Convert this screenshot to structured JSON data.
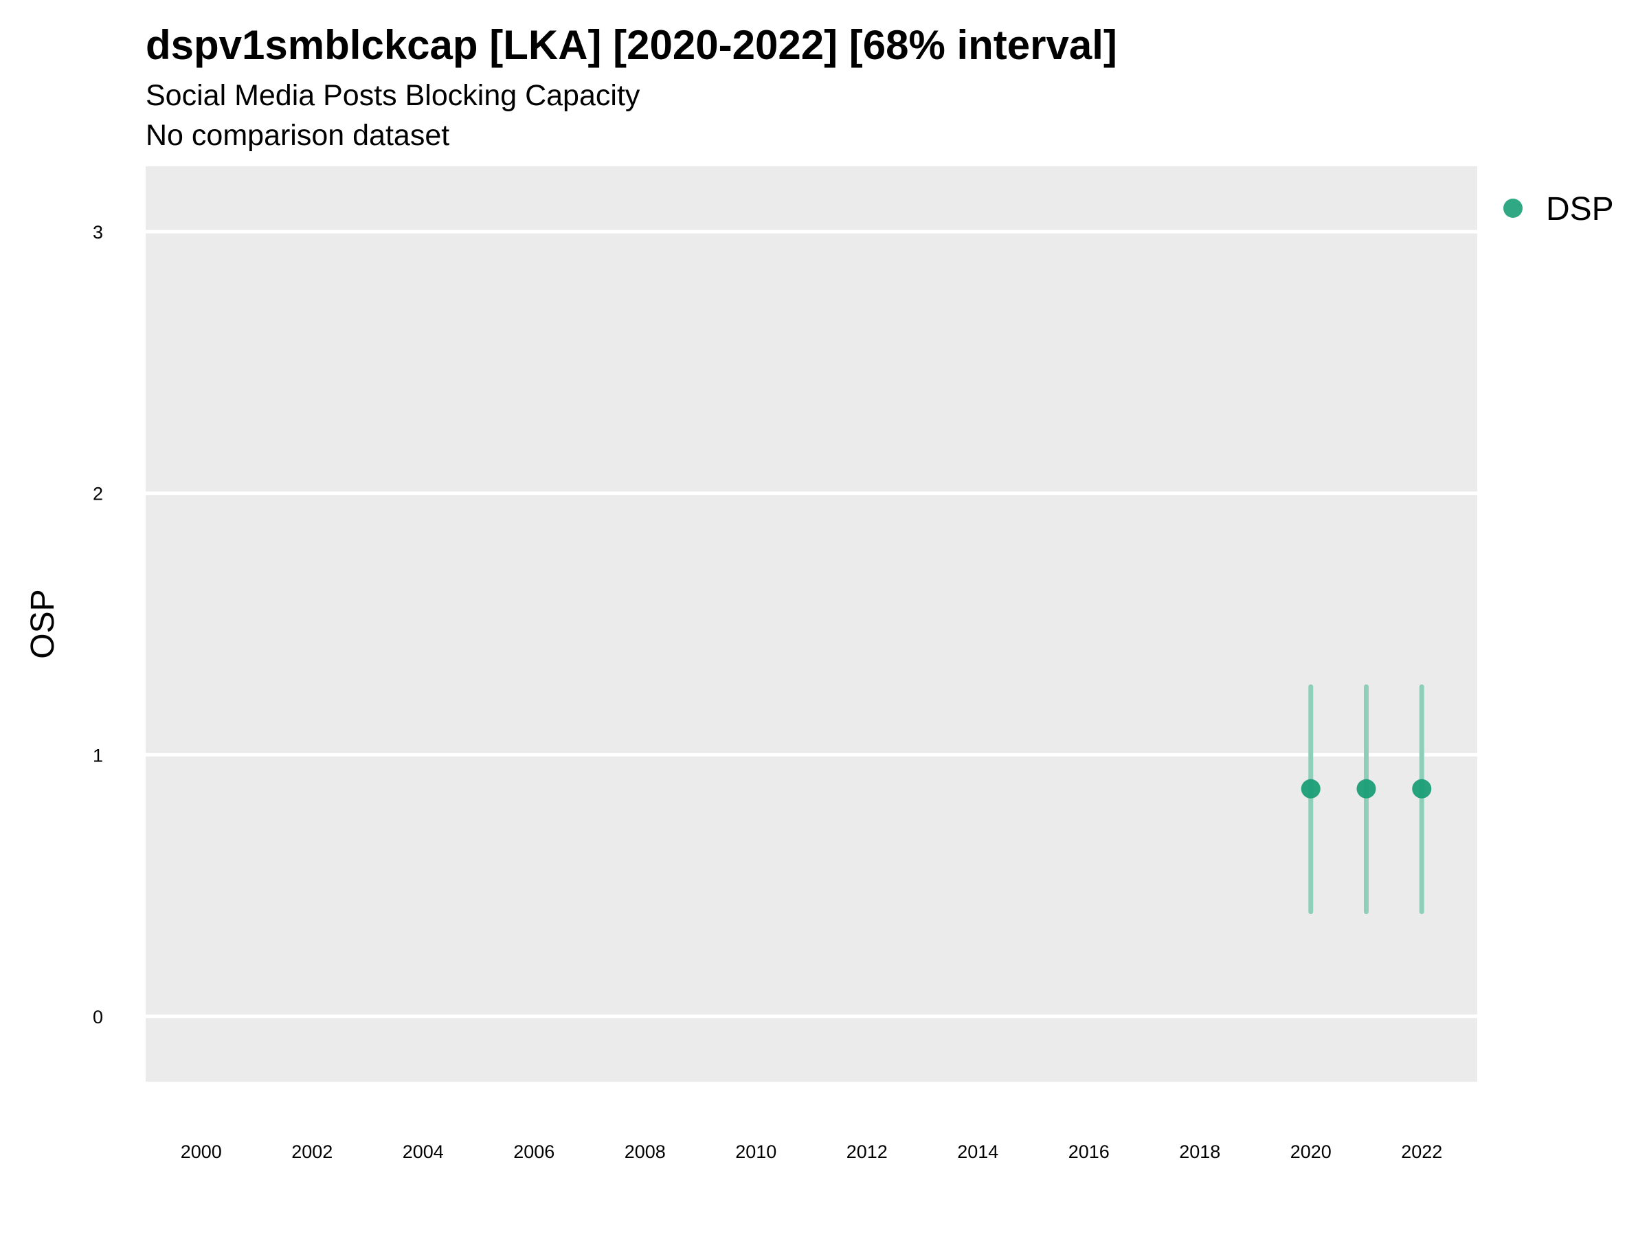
{
  "chart_data": {
    "type": "scatter",
    "title": "dspv1smblckcap [LKA] [2020-2022] [68% interval]",
    "subtitle": "Social Media Posts Blocking Capacity",
    "caption": "No comparison dataset",
    "xlabel": "",
    "ylabel": "OSP",
    "xlim": [
      1999,
      2023
    ],
    "ylim": [
      -0.25,
      3.25
    ],
    "x_ticks": [
      2000,
      2002,
      2004,
      2006,
      2008,
      2010,
      2012,
      2014,
      2016,
      2018,
      2020,
      2022
    ],
    "y_ticks": [
      0,
      1,
      2,
      3
    ],
    "grid": true,
    "legend_position": "right",
    "colors": {
      "panel_background": "#ebebeb",
      "grid_line": "#ffffff",
      "series_point": "#1b9e77",
      "interval_line": "#8fcfb9"
    },
    "series": [
      {
        "name": "DSP",
        "x": [
          2020,
          2021,
          2022
        ],
        "y": [
          0.87,
          0.87,
          0.87
        ],
        "lower": [
          0.4,
          0.4,
          0.4
        ],
        "upper": [
          1.26,
          1.26,
          1.26
        ]
      }
    ]
  }
}
